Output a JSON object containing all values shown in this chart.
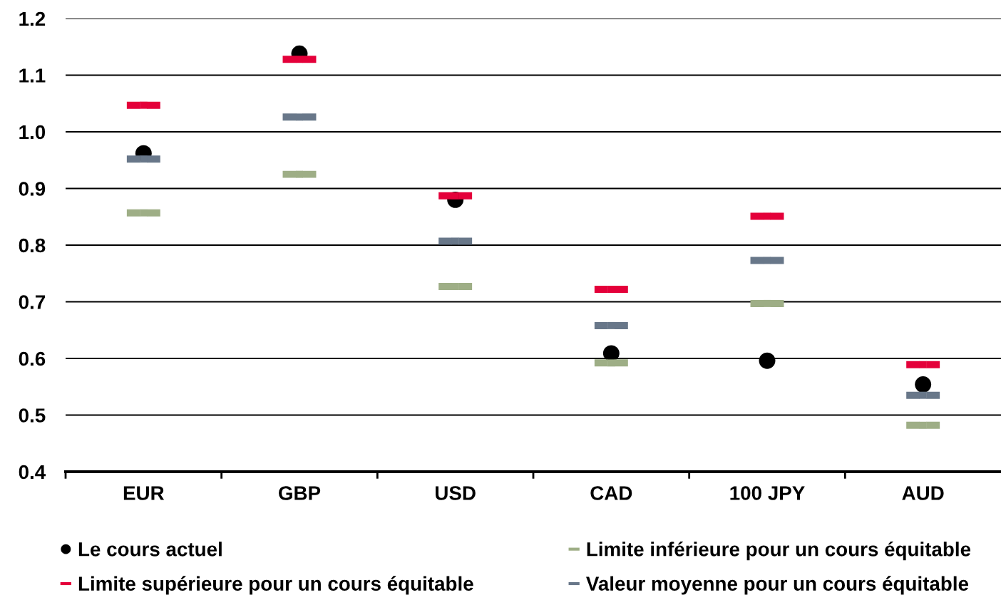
{
  "chart_data": {
    "type": "scatter",
    "categories": [
      "EUR",
      "GBP",
      "USD",
      "CAD",
      "100 JPY",
      "AUD"
    ],
    "series": [
      {
        "name": "Le cours actuel",
        "color": "#000000",
        "marker": "circle",
        "values": [
          0.962,
          1.138,
          0.88,
          0.609,
          0.596,
          0.554
        ]
      },
      {
        "name": "Limite supérieure pour un cours équitable",
        "color": "#e4003a",
        "marker": "square",
        "values": [
          1.047,
          1.128,
          0.887,
          0.722,
          0.851,
          0.589
        ]
      },
      {
        "name": "Limite inférieure pour un cours équitable",
        "color": "#9eae86",
        "marker": "square",
        "values": [
          0.857,
          0.925,
          0.727,
          0.592,
          0.697,
          0.482
        ]
      },
      {
        "name": "Valeur moyenne pour un cours équitable",
        "color": "#687789",
        "marker": "square",
        "values": [
          0.952,
          1.026,
          0.807,
          0.658,
          0.773,
          0.535
        ]
      }
    ],
    "ylim": [
      0.4,
      1.2
    ],
    "yticks": [
      0.4,
      0.5,
      0.6,
      0.7,
      0.8,
      0.9,
      {
        "value": 1.0,
        "label": "1.0"
      },
      1.1,
      1.2
    ],
    "grid": "y",
    "legend": "bottom"
  }
}
